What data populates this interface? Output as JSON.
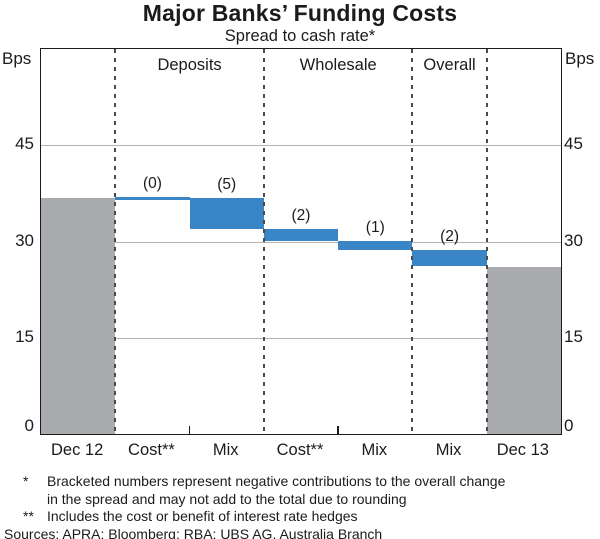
{
  "chart_data": {
    "type": "waterfall-bar",
    "title": "Major Banks’ Funding Costs",
    "subtitle": "Spread to cash rate*",
    "unit": "Bps",
    "ylim": [
      0,
      60
    ],
    "yticks": [
      0,
      15,
      30,
      45
    ],
    "gridlines": [
      15,
      30,
      45
    ],
    "legend": "none",
    "columns": [
      {
        "category": "Dec 12",
        "kind": "level",
        "from": 0,
        "to": 36.8
      },
      {
        "category": "Cost**",
        "kind": "change",
        "section": "Deposits",
        "label": "(0)",
        "from": 36.9,
        "to": 36.5
      },
      {
        "category": "Mix",
        "kind": "change",
        "section": "Deposits",
        "label": "(5)",
        "from": 36.8,
        "to": 32.0
      },
      {
        "category": "Cost**",
        "kind": "change",
        "section": "Wholesale",
        "label": "(2)",
        "from": 32.0,
        "to": 30.1
      },
      {
        "category": "Mix",
        "kind": "change",
        "section": "Wholesale",
        "label": "(1)",
        "from": 30.1,
        "to": 28.6
      },
      {
        "category": "Mix",
        "kind": "change",
        "section": "Overall",
        "label": "(2)",
        "from": 28.6,
        "to": 26.2
      },
      {
        "category": "Dec 13",
        "kind": "level",
        "from": 0,
        "to": 26.0
      }
    ],
    "sections": [
      {
        "label": "Deposits",
        "start_col": 1,
        "end_col": 2
      },
      {
        "label": "Wholesale",
        "start_col": 3,
        "end_col": 4
      },
      {
        "label": "Overall",
        "start_col": 5,
        "end_col": 5
      }
    ],
    "separators_after_cols": [
      0,
      2,
      4,
      5
    ],
    "minor_ticks_after_cols": [
      1,
      3
    ],
    "colors": {
      "level_bar": "#a9abae",
      "change_bar": "#3a85c6",
      "gridline": "#b3b3b3",
      "separator": "#4a4a4a",
      "axis": "#1a1a1a",
      "text": "#1b1b1b"
    }
  },
  "footnotes": [
    {
      "marker": "*",
      "lines": [
        "Bracketed numbers represent negative contributions to the overall change",
        "in the spread and may not add to the total due to rounding"
      ]
    },
    {
      "marker": "**",
      "lines": [
        "Includes the cost or benefit of interest rate hedges"
      ]
    }
  ],
  "sources": "Sources: APRA; Bloomberg; RBA; UBS AG, Australia Branch"
}
